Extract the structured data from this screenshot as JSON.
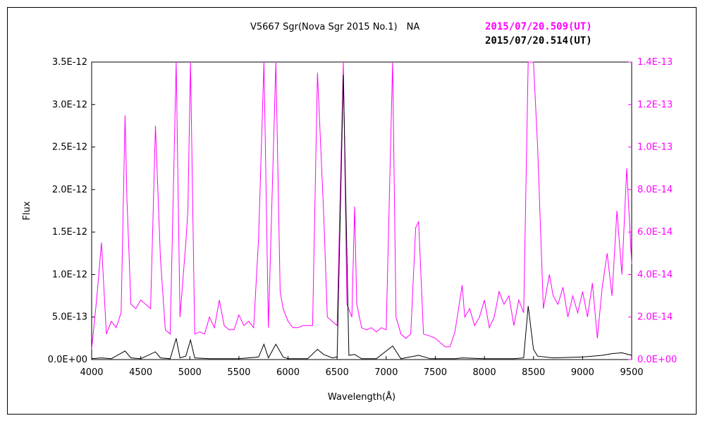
{
  "chart_data": {
    "type": "line",
    "title": "V5667 Sgr(Nova Sgr 2015 No.1)　NA",
    "xlabel": "Wavelength(Å)",
    "ylabel": "Flux",
    "xlim": [
      4000,
      9500
    ],
    "ylim_left": [
      0,
      3.5e-12
    ],
    "ylim_right": [
      0,
      1.4e-13
    ],
    "x_ticks": [
      4000,
      4500,
      5000,
      5500,
      6000,
      6500,
      7000,
      7500,
      8000,
      8500,
      9000,
      9500
    ],
    "x_tick_labels": [
      "4000",
      "4500",
      "5000",
      "5500",
      "6000",
      "6500",
      "7000",
      "7500",
      "8000",
      "8500",
      "9000",
      "9500"
    ],
    "y_left_ticks": [
      0,
      5e-13,
      1e-12,
      1.5e-12,
      2e-12,
      2.5e-12,
      3e-12,
      3.5e-12
    ],
    "y_left_tick_labels": [
      "0.0E+00",
      "5.0E-13",
      "1.0E-12",
      "1.5E-12",
      "2.0E-12",
      "2.5E-12",
      "3.0E-12",
      "3.5E-12"
    ],
    "y_right_ticks": [
      0,
      2e-14,
      4e-14,
      6e-14,
      8e-14,
      1e-13,
      1.2e-13,
      1.4e-13
    ],
    "y_right_tick_labels": [
      "0.0E+00",
      "2.0E-14",
      "4.0E-14",
      "6.0E-14",
      "8.0E-14",
      "1.0E-13",
      "1.2E-13",
      "1.4E-13"
    ],
    "grid": false,
    "legend_placement": "top-right",
    "series": [
      {
        "name": "2015/07/20.509(UT)",
        "axis": "right",
        "color": "#ff00ff",
        "points": [
          [
            4000,
            5e-15
          ],
          [
            4050,
            2.8e-14
          ],
          [
            4100,
            5.5e-14
          ],
          [
            4150,
            1.2e-14
          ],
          [
            4200,
            1.8e-14
          ],
          [
            4250,
            1.5e-14
          ],
          [
            4300,
            2.2e-14
          ],
          [
            4340,
            1.15e-13
          ],
          [
            4360,
            7.5e-14
          ],
          [
            4400,
            2.6e-14
          ],
          [
            4450,
            2.4e-14
          ],
          [
            4500,
            2.8e-14
          ],
          [
            4550,
            2.6e-14
          ],
          [
            4600,
            2.4e-14
          ],
          [
            4650,
            1.1e-13
          ],
          [
            4700,
            4.8e-14
          ],
          [
            4750,
            1.4e-14
          ],
          [
            4800,
            1.2e-14
          ],
          [
            4861,
            1.4e-13
          ],
          [
            4900,
            2e-14
          ],
          [
            4959,
            5.5e-14
          ],
          [
            4980,
            7e-14
          ],
          [
            5007,
            1.4e-13
          ],
          [
            5050,
            1.2e-14
          ],
          [
            5100,
            1.3e-14
          ],
          [
            5150,
            1.2e-14
          ],
          [
            5200,
            2e-14
          ],
          [
            5250,
            1.5e-14
          ],
          [
            5300,
            2.8e-14
          ],
          [
            5350,
            1.6e-14
          ],
          [
            5400,
            1.4e-14
          ],
          [
            5450,
            1.4e-14
          ],
          [
            5500,
            2.1e-14
          ],
          [
            5550,
            1.6e-14
          ],
          [
            5600,
            1.8e-14
          ],
          [
            5650,
            1.5e-14
          ],
          [
            5700,
            5.7e-14
          ],
          [
            5755,
            1.4e-13
          ],
          [
            5800,
            1.5e-14
          ],
          [
            5876,
            1.4e-13
          ],
          [
            5920,
            3.2e-14
          ],
          [
            5950,
            2.4e-14
          ],
          [
            6000,
            1.8e-14
          ],
          [
            6050,
            1.5e-14
          ],
          [
            6100,
            1.5e-14
          ],
          [
            6150,
            1.6e-14
          ],
          [
            6200,
            1.6e-14
          ],
          [
            6250,
            1.6e-14
          ],
          [
            6300,
            1.35e-13
          ],
          [
            6364,
            6.8e-14
          ],
          [
            6400,
            2e-14
          ],
          [
            6450,
            1.8e-14
          ],
          [
            6500,
            1.6e-14
          ],
          [
            6563,
            1.4e-13
          ],
          [
            6600,
            2.6e-14
          ],
          [
            6650,
            2e-14
          ],
          [
            6678,
            7.2e-14
          ],
          [
            6700,
            2.6e-14
          ],
          [
            6750,
            1.5e-14
          ],
          [
            6800,
            1.4e-14
          ],
          [
            6850,
            1.5e-14
          ],
          [
            6900,
            1.3e-14
          ],
          [
            6950,
            1.5e-14
          ],
          [
            7000,
            1.4e-14
          ],
          [
            7065,
            1.4e-13
          ],
          [
            7100,
            2e-14
          ],
          [
            7150,
            1.2e-14
          ],
          [
            7200,
            1e-14
          ],
          [
            7250,
            1.2e-14
          ],
          [
            7300,
            6.2e-14
          ],
          [
            7330,
            6.5e-14
          ],
          [
            7380,
            1.2e-14
          ],
          [
            7450,
            1.1e-14
          ],
          [
            7500,
            1e-14
          ],
          [
            7550,
            8e-15
          ],
          [
            7600,
            6e-15
          ],
          [
            7650,
            6e-15
          ],
          [
            7700,
            1.3e-14
          ],
          [
            7774,
            3.5e-14
          ],
          [
            7800,
            2e-14
          ],
          [
            7850,
            2.4e-14
          ],
          [
            7900,
            1.6e-14
          ],
          [
            7950,
            2e-14
          ],
          [
            8000,
            2.8e-14
          ],
          [
            8050,
            1.5e-14
          ],
          [
            8100,
            2e-14
          ],
          [
            8150,
            3.2e-14
          ],
          [
            8200,
            2.6e-14
          ],
          [
            8250,
            3e-14
          ],
          [
            8300,
            1.6e-14
          ],
          [
            8350,
            2.8e-14
          ],
          [
            8400,
            2.2e-14
          ],
          [
            8446,
            1.4e-13
          ],
          [
            8500,
            1.4e-13
          ],
          [
            8542,
            1e-13
          ],
          [
            8600,
            2.4e-14
          ],
          [
            8662,
            4e-14
          ],
          [
            8700,
            3e-14
          ],
          [
            8750,
            2.6e-14
          ],
          [
            8800,
            3.4e-14
          ],
          [
            8850,
            2e-14
          ],
          [
            8900,
            3e-14
          ],
          [
            8950,
            2.2e-14
          ],
          [
            9000,
            3.2e-14
          ],
          [
            9050,
            2e-14
          ],
          [
            9100,
            3.6e-14
          ],
          [
            9150,
            1e-14
          ],
          [
            9200,
            3.4e-14
          ],
          [
            9250,
            5e-14
          ],
          [
            9300,
            3e-14
          ],
          [
            9350,
            7e-14
          ],
          [
            9400,
            4e-14
          ],
          [
            9450,
            9e-14
          ],
          [
            9500,
            4.5e-14
          ]
        ]
      },
      {
        "name": "2015/07/20.514(UT)",
        "axis": "left",
        "color": "#000000",
        "points": [
          [
            4000,
            1e-14
          ],
          [
            4100,
            2e-14
          ],
          [
            4200,
            1e-14
          ],
          [
            4340,
            1e-13
          ],
          [
            4400,
            2e-14
          ],
          [
            4500,
            1e-14
          ],
          [
            4650,
            9e-14
          ],
          [
            4700,
            2e-14
          ],
          [
            4800,
            1e-14
          ],
          [
            4861,
            2.5e-13
          ],
          [
            4900,
            2e-14
          ],
          [
            4959,
            4e-14
          ],
          [
            5007,
            2.3e-13
          ],
          [
            5050,
            2e-14
          ],
          [
            5200,
            1e-14
          ],
          [
            5300,
            1e-14
          ],
          [
            5500,
            1e-14
          ],
          [
            5700,
            3e-14
          ],
          [
            5755,
            1.8e-13
          ],
          [
            5800,
            2e-14
          ],
          [
            5876,
            1.8e-13
          ],
          [
            5950,
            3e-14
          ],
          [
            6000,
            1e-14
          ],
          [
            6200,
            1e-14
          ],
          [
            6300,
            1.2e-13
          ],
          [
            6364,
            6e-14
          ],
          [
            6450,
            2e-14
          ],
          [
            6500,
            3e-14
          ],
          [
            6563,
            3.35e-12
          ],
          [
            6620,
            5e-14
          ],
          [
            6678,
            6e-14
          ],
          [
            6750,
            1e-14
          ],
          [
            6900,
            1e-14
          ],
          [
            7065,
            1.6e-13
          ],
          [
            7150,
            1e-14
          ],
          [
            7330,
            5e-14
          ],
          [
            7450,
            1e-14
          ],
          [
            7700,
            1e-14
          ],
          [
            7774,
            2e-14
          ],
          [
            8000,
            1e-14
          ],
          [
            8300,
            1e-14
          ],
          [
            8400,
            2e-14
          ],
          [
            8446,
            6.3e-13
          ],
          [
            8500,
            1.2e-13
          ],
          [
            8542,
            4e-14
          ],
          [
            8700,
            2e-14
          ],
          [
            9000,
            3e-14
          ],
          [
            9200,
            5e-14
          ],
          [
            9300,
            7e-14
          ],
          [
            9400,
            8e-14
          ],
          [
            9500,
            5e-14
          ]
        ]
      }
    ]
  }
}
